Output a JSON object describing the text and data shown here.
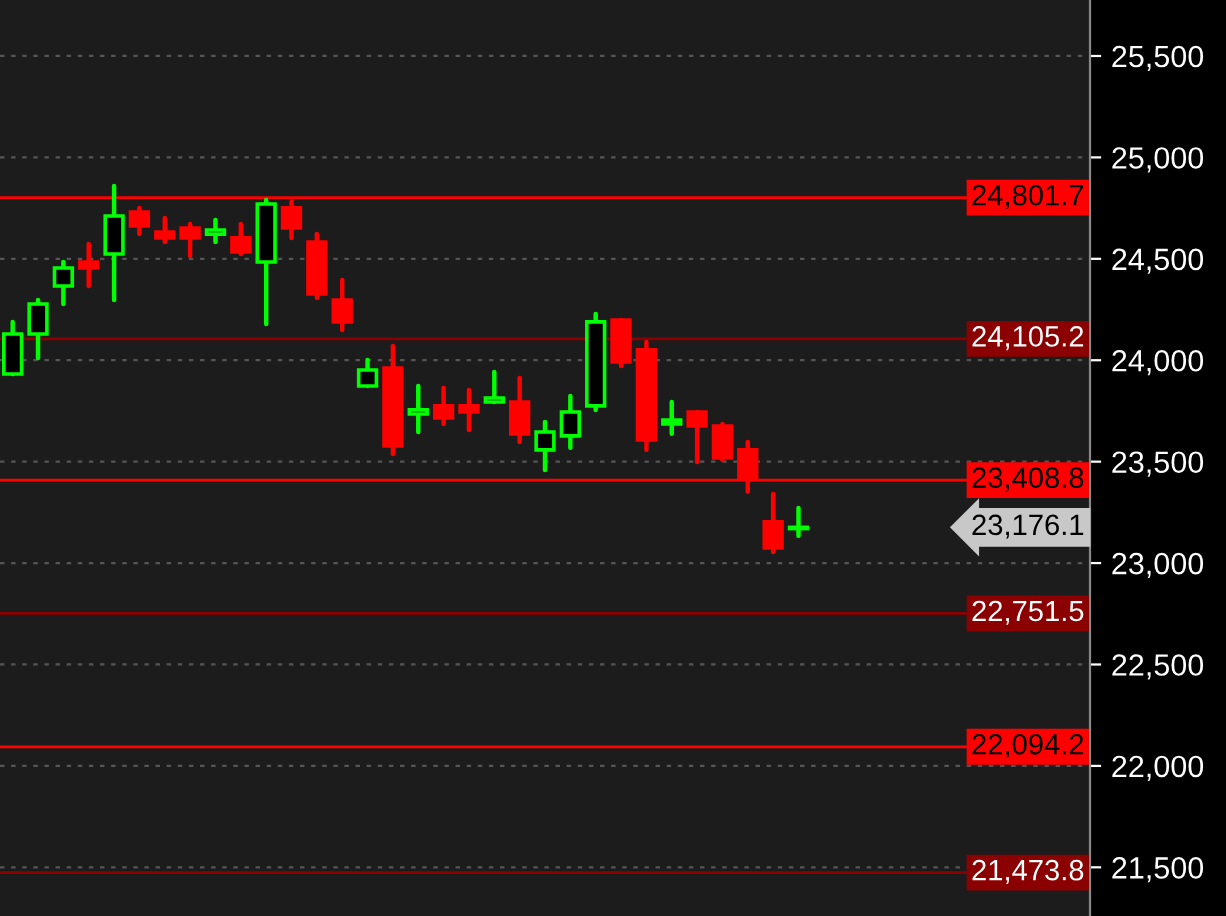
{
  "chart_data": {
    "type": "candlestick",
    "categories": [
      null,
      null,
      null,
      null,
      null,
      null,
      null,
      null,
      null,
      null,
      null,
      null,
      null,
      null,
      null,
      null,
      null,
      null,
      null,
      null,
      null,
      null,
      null,
      null,
      null,
      null,
      null,
      null,
      null,
      null,
      null,
      null,
      null,
      null,
      null,
      null,
      null,
      null,
      null,
      null,
      null,
      null,
      null
    ],
    "ohlc": [
      [
        23932,
        24189,
        23932,
        24129
      ],
      [
        24129,
        24297,
        24011,
        24277
      ],
      [
        24366,
        24484,
        24277,
        24455
      ],
      [
        24484,
        24573,
        24366,
        24455
      ],
      [
        24524,
        24859,
        24297,
        24711
      ],
      [
        24731,
        24751,
        24622,
        24662
      ],
      [
        24632,
        24701,
        24583,
        24603
      ],
      [
        24652,
        24672,
        24514,
        24603
      ],
      [
        24622,
        24692,
        24583,
        24642
      ],
      [
        24603,
        24672,
        24524,
        24534
      ],
      [
        24484,
        24790,
        24179,
        24770
      ],
      [
        24751,
        24780,
        24603,
        24652
      ],
      [
        24583,
        24622,
        24307,
        24327
      ],
      [
        24297,
        24396,
        24149,
        24189
      ],
      [
        23873,
        24001,
        23873,
        23952
      ],
      [
        23962,
        24070,
        23538,
        23577
      ],
      [
        23735,
        23873,
        23646,
        23755
      ],
      [
        23775,
        23863,
        23686,
        23715
      ],
      [
        23775,
        23853,
        23656,
        23745
      ],
      [
        23794,
        23942,
        23794,
        23814
      ],
      [
        23794,
        23913,
        23597,
        23637
      ],
      [
        23558,
        23696,
        23459,
        23646
      ],
      [
        23627,
        23824,
        23568,
        23745
      ],
      [
        23775,
        24228,
        23755,
        24189
      ],
      [
        24198,
        24198,
        23972,
        23991
      ],
      [
        24051,
        24090,
        23558,
        23607
      ],
      [
        23686,
        23794,
        23637,
        23705
      ],
      [
        23745,
        23745,
        23498,
        23676
      ],
      [
        23676,
        23686,
        23508,
        23518
      ],
      [
        23558,
        23597,
        23351,
        23420
      ],
      [
        23203,
        23341,
        23055,
        23074
      ],
      [
        23170,
        23272,
        23134,
        23176.1
      ],
      null,
      null,
      null,
      null,
      null,
      null,
      null,
      null,
      null,
      null,
      null
    ],
    "colors": [
      "#00ff00",
      "#00ff00",
      "#00ff00",
      "#ff0000",
      "#00ff00",
      "#ff0000",
      "#ff0000",
      "#ff0000",
      "#00ff00",
      "#ff0000",
      "#00ff00",
      "#ff0000",
      "#ff0000",
      "#ff0000",
      "#00ff00",
      "#ff0000",
      "#00ff00",
      "#ff0000",
      "#ff0000",
      "#00ff00",
      "#ff0000",
      "#00ff00",
      "#00ff00",
      "#00ff00",
      "#ff0000",
      "#ff0000",
      "#00ff00",
      "#ff0000",
      "#ff0000",
      "#ff0000",
      "#ff0000",
      "#00ff00",
      null,
      null,
      null,
      null,
      null,
      null,
      null,
      null,
      null,
      null,
      null
    ],
    "ylim": [
      21260,
      25776
    ],
    "yticks": [
      {
        "value": 21500,
        "label": "21,500"
      },
      {
        "value": 22000,
        "label": "22,000"
      },
      {
        "value": 22500,
        "label": "22,500"
      },
      {
        "value": 23000,
        "label": "23,000"
      },
      {
        "value": 23500,
        "label": "23,500"
      },
      {
        "value": 24000,
        "label": "24,000"
      },
      {
        "value": 24500,
        "label": "24,500"
      },
      {
        "value": 25000,
        "label": "25,000"
      },
      {
        "value": 25500,
        "label": "25,500"
      }
    ],
    "ref_lines": [
      {
        "axis": "y",
        "value": 24801.7,
        "label": "24,801.7",
        "color": "#ff0000"
      },
      {
        "axis": "y",
        "value": 24105.2,
        "label": "24,105.2",
        "color": "#8b0000"
      },
      {
        "axis": "y",
        "value": 23408.8,
        "label": "23,408.8",
        "color": "#ff0000"
      },
      {
        "axis": "y",
        "value": 22751.5,
        "label": "22,751.5",
        "color": "#8b0000"
      },
      {
        "axis": "y",
        "value": 22094.2,
        "label": "22,094.2",
        "color": "#ff0000"
      },
      {
        "axis": "y",
        "value": 21473.8,
        "label": "21,473.8",
        "color": "#8b0000"
      }
    ],
    "annotations": [
      "23,176.1"
    ],
    "grid": "y",
    "tick_labels": "y"
  }
}
